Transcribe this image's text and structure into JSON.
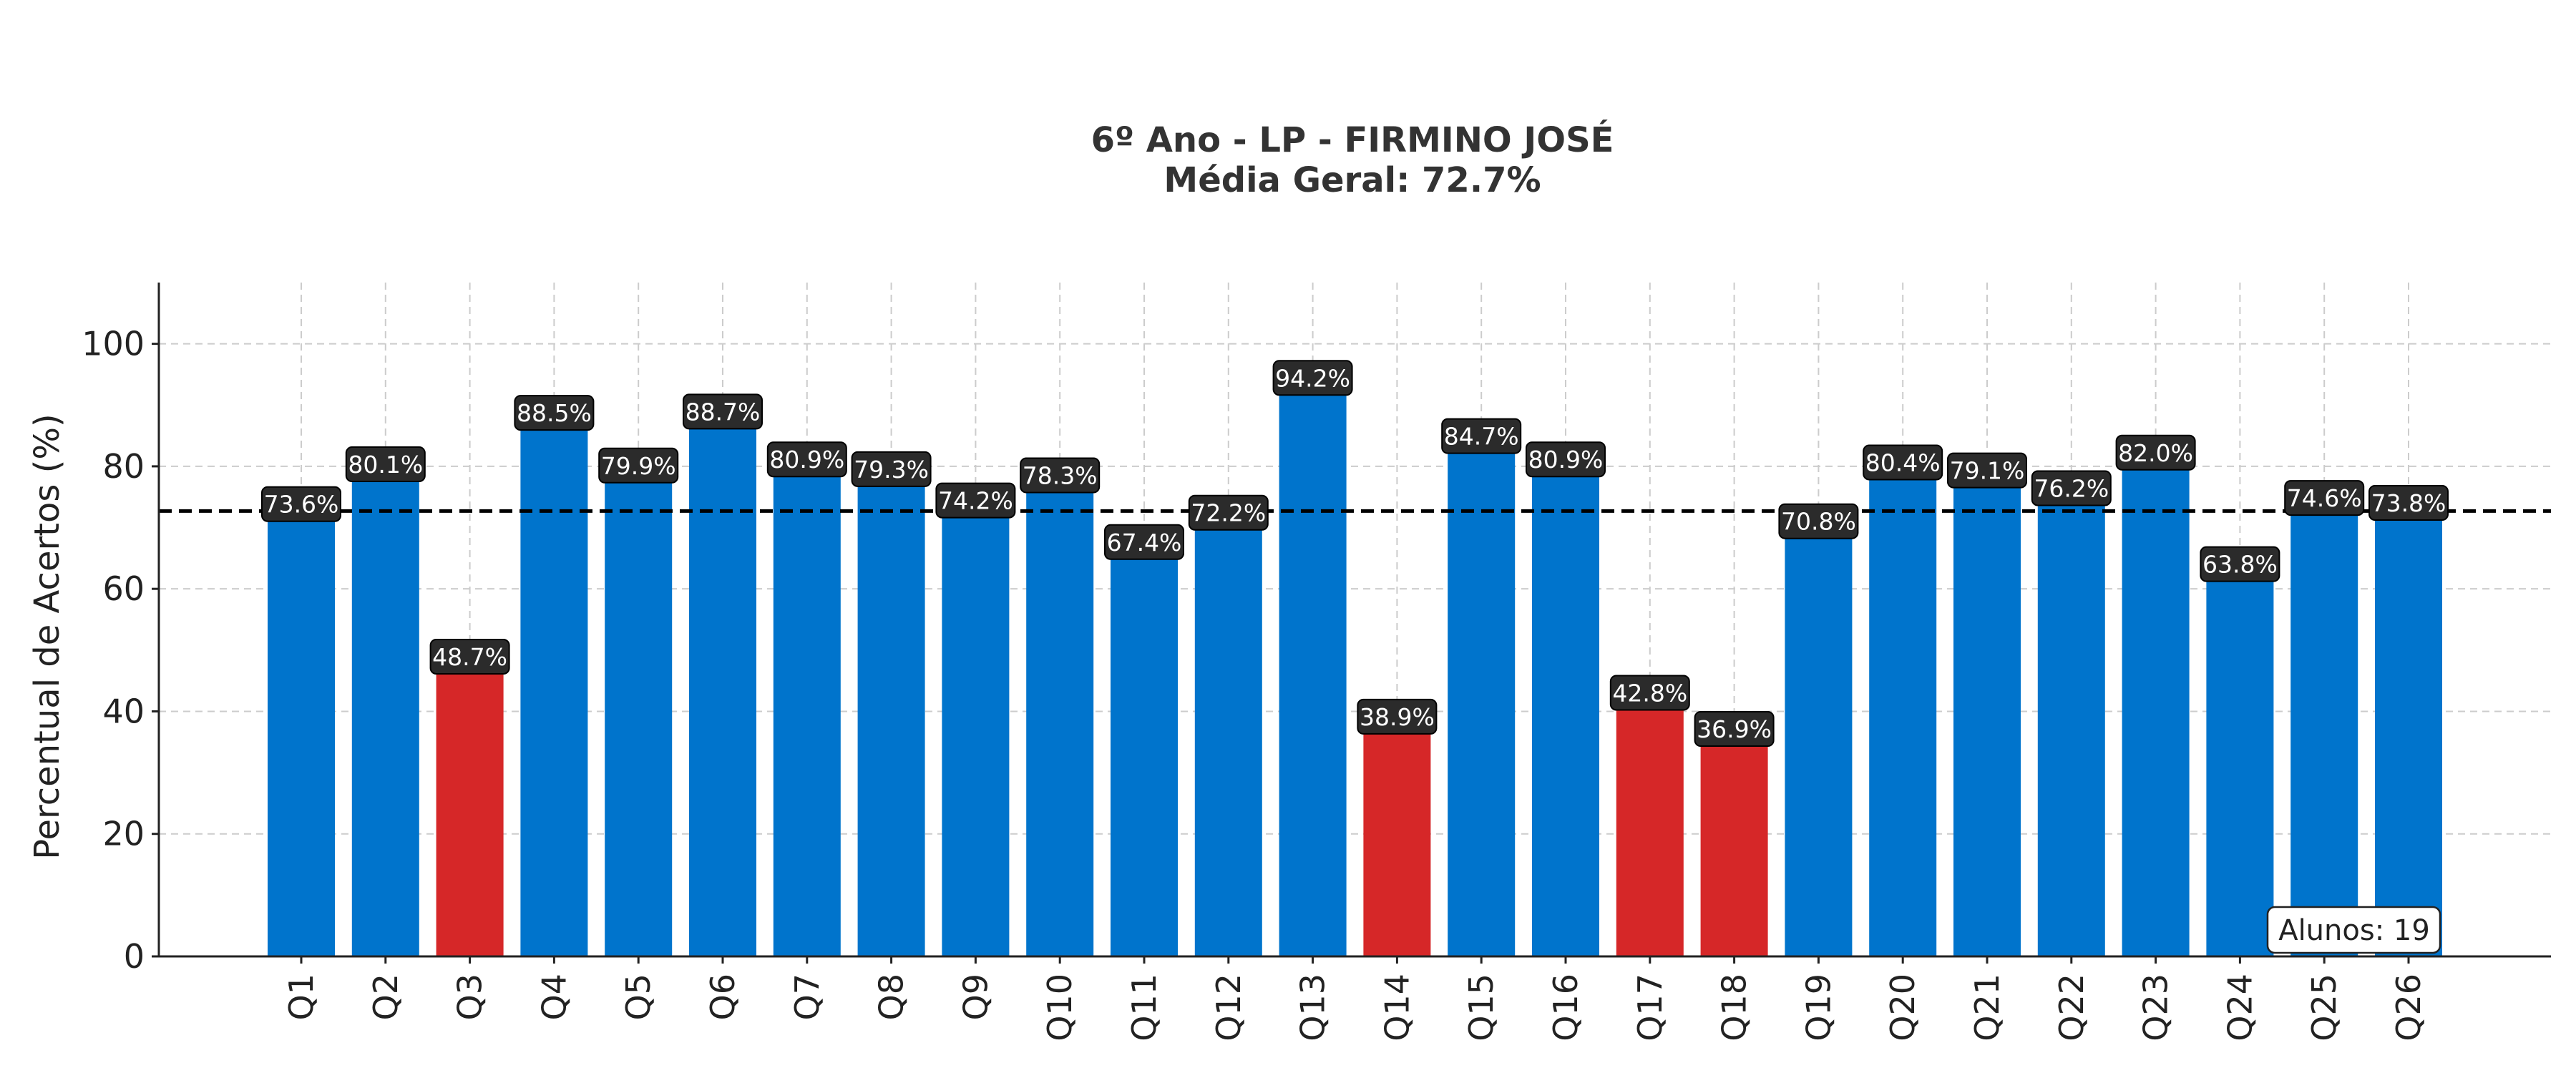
{
  "chart_data": {
    "type": "bar",
    "title": "6º Ano - LP - FIRMINO JOSÉ",
    "subtitle": "Média Geral: 72.7%",
    "xlabel": "",
    "ylabel": "Percentual de Acertos (%)",
    "ylim": [
      0,
      110
    ],
    "yticks": [
      0,
      20,
      40,
      60,
      80,
      100
    ],
    "grid": true,
    "categories": [
      "Q1",
      "Q2",
      "Q3",
      "Q4",
      "Q5",
      "Q6",
      "Q7",
      "Q8",
      "Q9",
      "Q10",
      "Q11",
      "Q12",
      "Q13",
      "Q14",
      "Q15",
      "Q16",
      "Q17",
      "Q18",
      "Q19",
      "Q20",
      "Q21",
      "Q22",
      "Q23",
      "Q24",
      "Q25",
      "Q26"
    ],
    "values": [
      73.6,
      80.1,
      48.7,
      88.5,
      79.9,
      88.7,
      80.9,
      79.3,
      74.2,
      78.3,
      67.4,
      72.2,
      94.2,
      38.9,
      84.7,
      80.9,
      42.8,
      36.9,
      70.8,
      80.4,
      79.1,
      76.2,
      82.0,
      63.8,
      74.6,
      73.8
    ],
    "data_labels": [
      "73.6%",
      "80.1%",
      "48.7%",
      "88.5%",
      "79.9%",
      "88.7%",
      "80.9%",
      "79.3%",
      "74.2%",
      "78.3%",
      "67.4%",
      "72.2%",
      "94.2%",
      "38.9%",
      "84.7%",
      "80.9%",
      "42.8%",
      "36.9%",
      "70.8%",
      "80.4%",
      "79.1%",
      "76.2%",
      "82.0%",
      "63.8%",
      "74.6%",
      "73.8%"
    ],
    "average_line": 72.7,
    "low_threshold": 50,
    "colors": {
      "bar": "#0074CC",
      "bar_low": "#D62728",
      "label_bg": "#2b2b2b",
      "grid": "#cccccc",
      "avg_line": "#000000"
    },
    "annotation": "Alunos: 19"
  }
}
